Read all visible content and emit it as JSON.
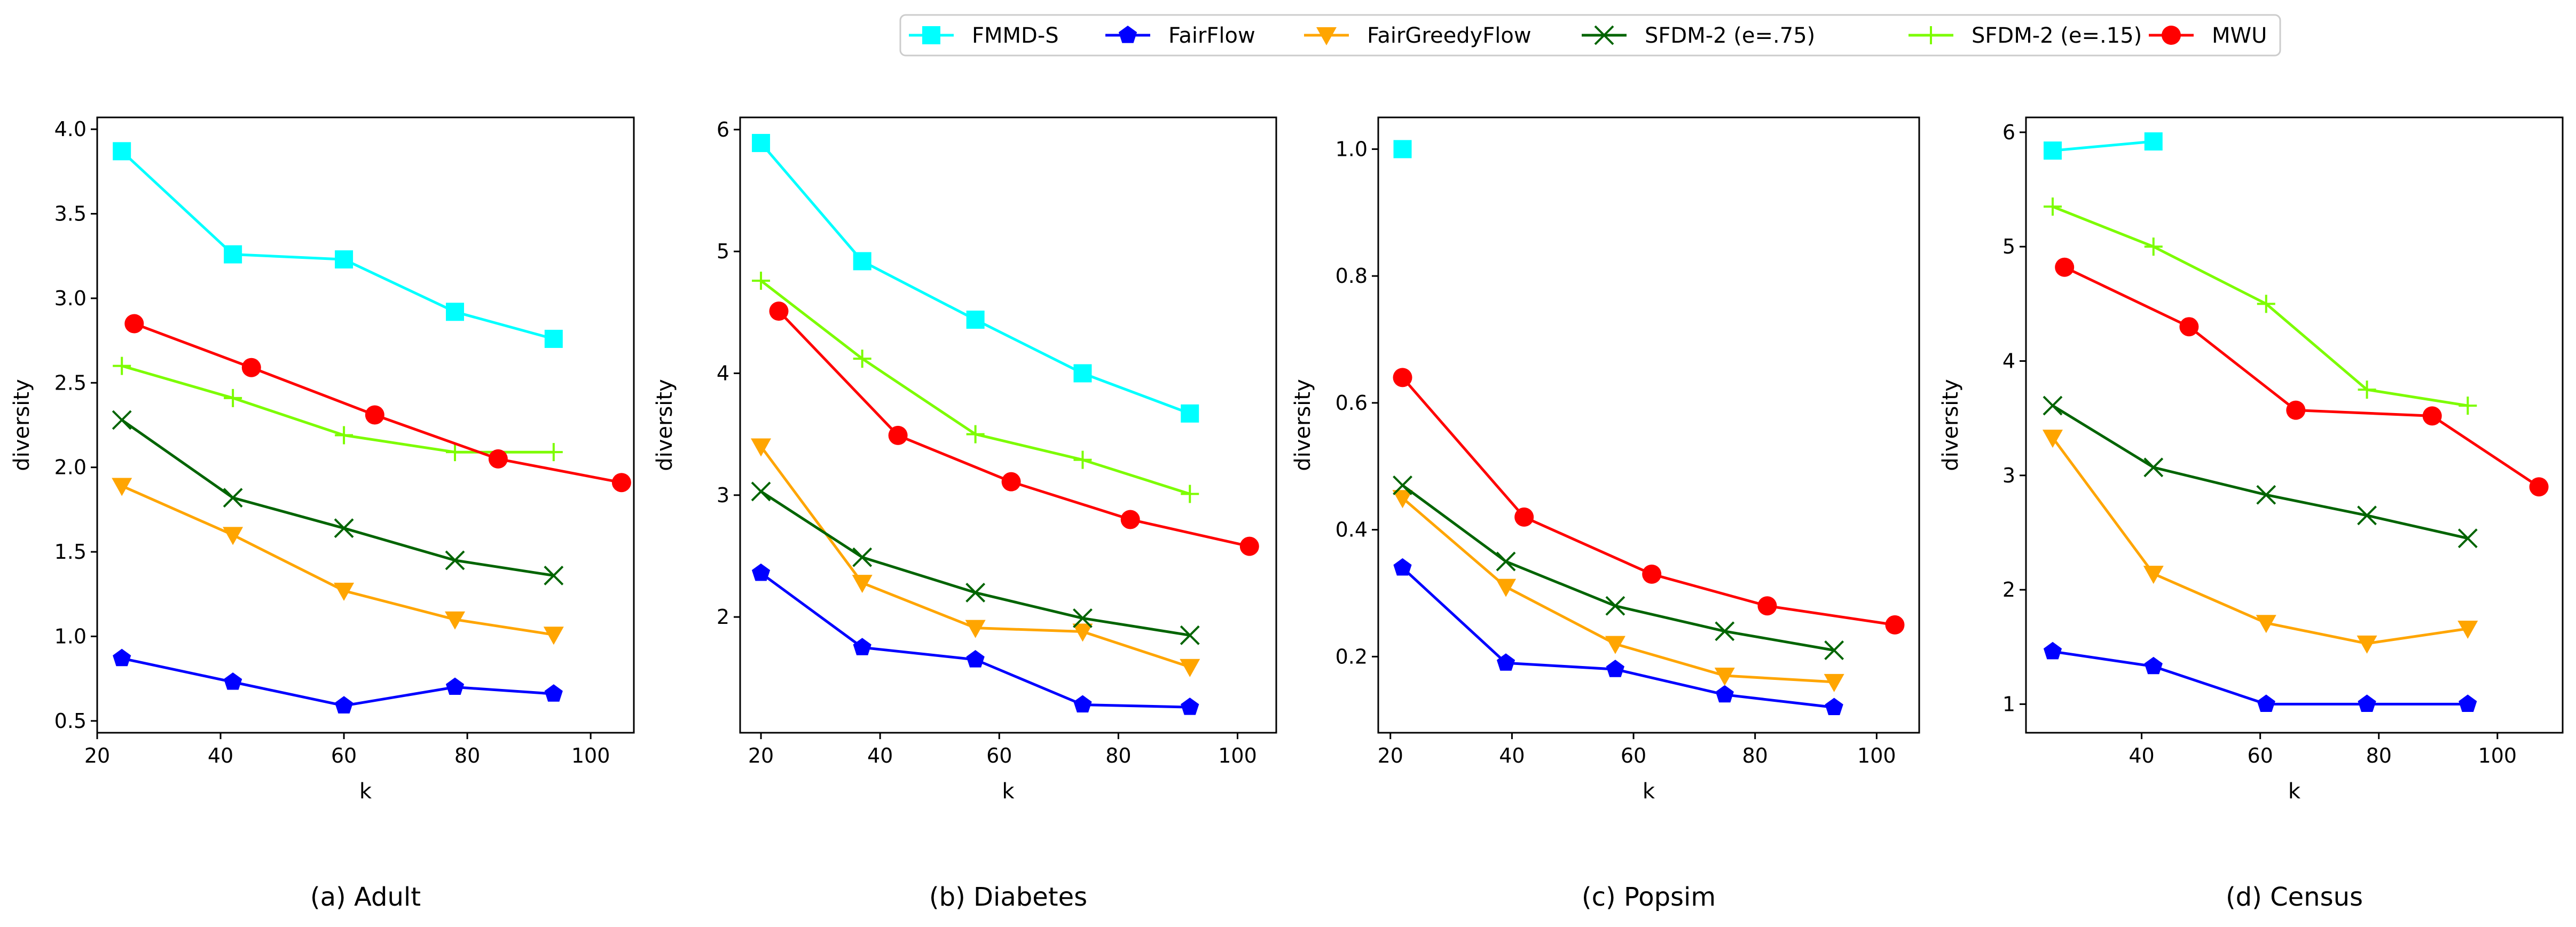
{
  "legend": [
    {
      "name": "FMMD-S",
      "color": "#00ffff",
      "marker": "square"
    },
    {
      "name": "FairFlow",
      "color": "#0000ff",
      "marker": "pentagon"
    },
    {
      "name": "FairGreedyFlow",
      "color": "#ffa500",
      "marker": "triangle-down"
    },
    {
      "name": "SFDM-2 (e=.75)",
      "color": "#006400",
      "marker": "x"
    },
    {
      "name": "SFDM-2 (e=.15)",
      "color": "#7cfc00",
      "marker": "plus"
    },
    {
      "name": "MWU",
      "color": "#ff0000",
      "marker": "circle"
    }
  ],
  "chart_data": [
    {
      "type": "line",
      "caption": "(a) Adult",
      "xlabel": "k",
      "ylabel": "diversity",
      "xlim": [
        20,
        107
      ],
      "ylim": [
        0.43,
        4.07
      ],
      "xticks": [
        "20",
        "40",
        "60",
        "80",
        "100"
      ],
      "yticks": [
        "0.5",
        "1.0",
        "1.5",
        "2.0",
        "2.5",
        "3.0",
        "3.5",
        "4.0"
      ],
      "series": [
        {
          "name": "FMMD-S",
          "x": [
            24,
            42,
            60,
            78,
            94
          ],
          "y": [
            3.87,
            3.26,
            3.23,
            2.92,
            2.76
          ]
        },
        {
          "name": "FairFlow",
          "x": [
            24,
            42,
            60,
            78,
            94
          ],
          "y": [
            0.87,
            0.73,
            0.59,
            0.7,
            0.66
          ]
        },
        {
          "name": "FairGreedyFlow",
          "x": [
            24,
            42,
            60,
            78,
            94
          ],
          "y": [
            1.89,
            1.6,
            1.27,
            1.1,
            1.01
          ]
        },
        {
          "name": "SFDM-2 (e=.75)",
          "x": [
            24,
            42,
            60,
            78,
            94
          ],
          "y": [
            2.28,
            1.82,
            1.64,
            1.45,
            1.36
          ]
        },
        {
          "name": "SFDM-2 (e=.15)",
          "x": [
            24,
            42,
            60,
            78,
            94
          ],
          "y": [
            2.6,
            2.41,
            2.19,
            2.09,
            2.09
          ]
        },
        {
          "name": "MWU",
          "x": [
            26,
            45,
            65,
            85,
            105
          ],
          "y": [
            2.85,
            2.59,
            2.31,
            2.05,
            1.91
          ]
        }
      ]
    },
    {
      "type": "line",
      "caption": "(b) Diabetes",
      "xlabel": "k",
      "ylabel": "diversity",
      "xlim": [
        16.5,
        106.5
      ],
      "ylim": [
        1.05,
        6.1
      ],
      "xticks": [
        "20",
        "40",
        "60",
        "80",
        "100"
      ],
      "yticks": [
        "2",
        "3",
        "4",
        "5",
        "6"
      ],
      "series": [
        {
          "name": "FMMD-S",
          "x": [
            20,
            37,
            56,
            74,
            92
          ],
          "y": [
            5.89,
            4.92,
            4.44,
            4.0,
            3.67
          ]
        },
        {
          "name": "FairFlow",
          "x": [
            20,
            37,
            56,
            74,
            92
          ],
          "y": [
            2.36,
            1.75,
            1.65,
            1.28,
            1.26
          ]
        },
        {
          "name": "FairGreedyFlow",
          "x": [
            20,
            37,
            56,
            74,
            92
          ],
          "y": [
            3.4,
            2.28,
            1.91,
            1.88,
            1.59
          ]
        },
        {
          "name": "SFDM-2 (e=.75)",
          "x": [
            20,
            37,
            56,
            74,
            92
          ],
          "y": [
            3.03,
            2.49,
            2.2,
            1.99,
            1.85
          ]
        },
        {
          "name": "SFDM-2 (e=.15)",
          "x": [
            20,
            37,
            56,
            74,
            92
          ],
          "y": [
            4.76,
            4.12,
            3.5,
            3.29,
            3.01
          ]
        },
        {
          "name": "MWU",
          "x": [
            23,
            43,
            62,
            82,
            102
          ],
          "y": [
            4.51,
            3.49,
            3.11,
            2.8,
            2.58
          ]
        }
      ]
    },
    {
      "type": "line",
      "caption": "(c) Popsim",
      "xlabel": "k",
      "ylabel": "diversity",
      "xlim": [
        18,
        107
      ],
      "ylim": [
        0.08,
        1.05
      ],
      "xticks": [
        "20",
        "40",
        "60",
        "80",
        "100"
      ],
      "yticks": [
        "0.2",
        "0.4",
        "0.6",
        "0.8",
        "1.0"
      ],
      "series": [
        {
          "name": "FMMD-S",
          "x": [
            22
          ],
          "y": [
            1.0
          ]
        },
        {
          "name": "FairFlow",
          "x": [
            22,
            39,
            57,
            75,
            93
          ],
          "y": [
            0.34,
            0.19,
            0.18,
            0.14,
            0.12
          ]
        },
        {
          "name": "FairGreedyFlow",
          "x": [
            22,
            39,
            57,
            75,
            93
          ],
          "y": [
            0.45,
            0.31,
            0.22,
            0.17,
            0.16
          ]
        },
        {
          "name": "SFDM-2 (e=.75)",
          "x": [
            22,
            39,
            57,
            75,
            93
          ],
          "y": [
            0.47,
            0.35,
            0.28,
            0.24,
            0.21
          ]
        },
        {
          "name": "SFDM-2 (e=.15)",
          "x": [],
          "y": []
        },
        {
          "name": "MWU",
          "x": [
            22,
            42,
            63,
            82,
            103
          ],
          "y": [
            0.64,
            0.42,
            0.33,
            0.28,
            0.25
          ]
        }
      ]
    },
    {
      "type": "line",
      "caption": "(d) Census",
      "xlabel": "k",
      "ylabel": "diversity",
      "xlim": [
        20.5,
        111
      ],
      "ylim": [
        0.75,
        6.13
      ],
      "xticks": [
        "40",
        "60",
        "80",
        "100"
      ],
      "yticks": [
        "1",
        "2",
        "3",
        "4",
        "5",
        "6"
      ],
      "series": [
        {
          "name": "FMMD-S",
          "x": [
            25,
            42
          ],
          "y": [
            5.84,
            5.92
          ]
        },
        {
          "name": "FairFlow",
          "x": [
            25,
            42,
            61,
            78,
            95
          ],
          "y": [
            1.46,
            1.33,
            1.0,
            1.0,
            1.0
          ]
        },
        {
          "name": "FairGreedyFlow",
          "x": [
            25,
            42,
            61,
            78,
            95
          ],
          "y": [
            3.33,
            2.14,
            1.71,
            1.53,
            1.66
          ]
        },
        {
          "name": "SFDM-2 (e=.75)",
          "x": [
            25,
            42,
            61,
            78,
            95
          ],
          "y": [
            3.61,
            3.07,
            2.83,
            2.65,
            2.45
          ]
        },
        {
          "name": "SFDM-2 (e=.15)",
          "x": [
            25,
            42,
            61,
            78,
            95
          ],
          "y": [
            5.35,
            5.0,
            4.5,
            3.75,
            3.61
          ]
        },
        {
          "name": "MWU",
          "x": [
            27,
            48,
            66,
            89,
            107
          ],
          "y": [
            4.82,
            4.3,
            3.57,
            3.52,
            2.9
          ]
        }
      ]
    }
  ]
}
